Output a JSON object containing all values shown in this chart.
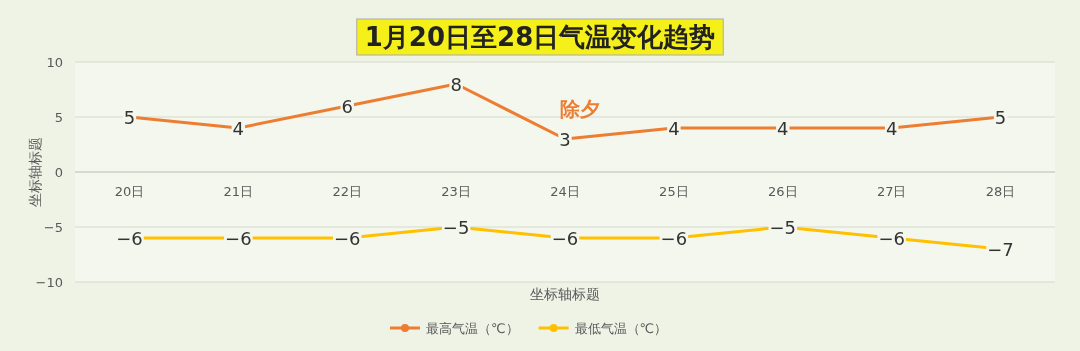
{
  "chart_data": {
    "type": "line",
    "title": "1月20日至28日气温变化趋势",
    "xlabel": "坐标轴标题",
    "ylabel": "坐标轴标题",
    "categories": [
      "20日",
      "21日",
      "22日",
      "23日",
      "24日",
      "25日",
      "26日",
      "27日",
      "28日"
    ],
    "series": [
      {
        "name": "最高气温（℃）",
        "color": "#ed7d31",
        "values": [
          5,
          4,
          6,
          8,
          3,
          4,
          4,
          4,
          5
        ]
      },
      {
        "name": "最低气温（℃）",
        "color": "#ffc000",
        "values": [
          -6,
          -6,
          -6,
          -5,
          -6,
          -6,
          -5,
          -6,
          -7
        ]
      }
    ],
    "ylim": [
      -10,
      10
    ],
    "yticks": [
      -10,
      -5,
      0,
      5,
      10
    ],
    "grid": "y",
    "legend": "bottom",
    "marker": "circle",
    "data_labels": true,
    "annotations": [
      "除夕"
    ]
  }
}
